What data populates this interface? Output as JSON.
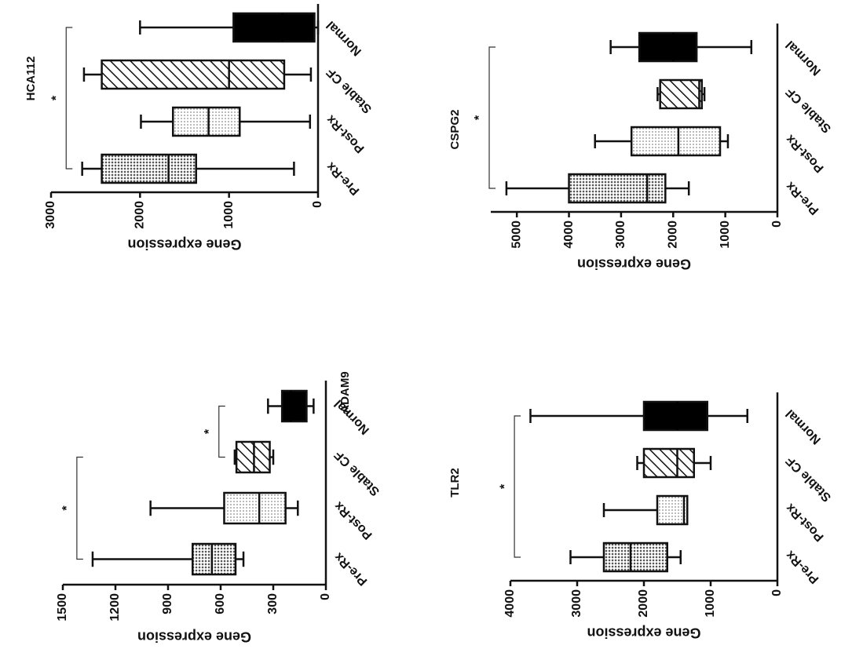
{
  "chart_data": [
    {
      "type": "box",
      "title": "ADAM9",
      "y_label": "Gene expression",
      "categories": [
        "Pre-Rx",
        "Post-Rx",
        "Stable CF",
        "Normal"
      ],
      "boxes": [
        {
          "min": 470,
          "q1": 515,
          "median": 650,
          "q3": 760,
          "max": 1330
        },
        {
          "min": 160,
          "q1": 230,
          "median": 380,
          "q3": 580,
          "max": 1000
        },
        {
          "min": 300,
          "q1": 320,
          "median": 410,
          "q3": 510,
          "max": 520
        },
        {
          "min": 70,
          "q1": 110,
          "median": 200,
          "q3": 250,
          "max": 330
        }
      ],
      "colors": [
        "#9a9a9a",
        "#d4d4d4",
        "#ffffff",
        "#000000"
      ],
      "patterns": [
        "dots",
        "dots",
        "hatch",
        "solid"
      ],
      "ylim": [
        0,
        1500
      ],
      "yticks": [
        0,
        300,
        600,
        900,
        1200,
        1500
      ],
      "grid": false,
      "annotations": [
        {
          "groups": [
            "Pre-Rx",
            "Stable CF"
          ],
          "label": "*"
        },
        {
          "groups": [
            "Stable CF",
            "Normal"
          ],
          "label": "*"
        }
      ]
    },
    {
      "type": "box",
      "title": "HCA112",
      "y_label": "Gene expression",
      "categories": [
        "Pre-Rx",
        "Post-Rx",
        "Stable CF",
        "Normal"
      ],
      "boxes": [
        {
          "min": 270,
          "q1": 1370,
          "median": 1680,
          "q3": 2430,
          "max": 2650
        },
        {
          "min": 90,
          "q1": 880,
          "median": 1230,
          "q3": 1630,
          "max": 1990
        },
        {
          "min": 80,
          "q1": 380,
          "median": 1000,
          "q3": 2430,
          "max": 2630
        },
        {
          "min": 0,
          "q1": 40,
          "median": 400,
          "q3": 950,
          "max": 2000
        }
      ],
      "colors": [
        "#9a9a9a",
        "#d4d4d4",
        "#ffffff",
        "#000000"
      ],
      "patterns": [
        "dots",
        "dots",
        "hatch",
        "solid"
      ],
      "ylim": [
        0,
        3000
      ],
      "yticks": [
        0,
        1000,
        2000,
        3000
      ],
      "grid": false,
      "annotations": [
        {
          "groups": [
            "Pre-Rx",
            "Normal"
          ],
          "label": "*"
        }
      ]
    },
    {
      "type": "box",
      "title": "TLR2",
      "y_label": "Gene expression",
      "categories": [
        "Pre-Rx",
        "Post-Rx",
        "Stable CF",
        "Normal"
      ],
      "boxes": [
        {
          "min": 1450,
          "q1": 1650,
          "median": 2200,
          "q3": 2600,
          "max": 3100
        },
        {
          "min": 1350,
          "q1": 1350,
          "median": 1400,
          "q3": 1800,
          "max": 2600
        },
        {
          "min": 1000,
          "q1": 1250,
          "median": 1500,
          "q3": 2000,
          "max": 2100
        },
        {
          "min": 450,
          "q1": 1050,
          "median": 1500,
          "q3": 2000,
          "max": 3700
        }
      ],
      "colors": [
        "#9a9a9a",
        "#d4d4d4",
        "#ffffff",
        "#000000"
      ],
      "patterns": [
        "dots",
        "dots",
        "hatch",
        "solid"
      ],
      "ylim": [
        0,
        4000
      ],
      "yticks": [
        0,
        1000,
        2000,
        3000,
        4000
      ],
      "grid": false,
      "annotations": [
        {
          "groups": [
            "Pre-Rx",
            "Normal"
          ],
          "label": "*"
        }
      ]
    },
    {
      "type": "box",
      "title": "CSPG2",
      "y_label": "Gene expression",
      "categories": [
        "Pre-Rx",
        "Post-Rx",
        "Stable CF",
        "Normal"
      ],
      "boxes": [
        {
          "min": 1700,
          "q1": 2150,
          "median": 2500,
          "q3": 4000,
          "max": 5200
        },
        {
          "min": 950,
          "q1": 1100,
          "median": 1900,
          "q3": 2800,
          "max": 3500
        },
        {
          "min": 1400,
          "q1": 1450,
          "median": 1500,
          "q3": 2250,
          "max": 2300
        },
        {
          "min": 500,
          "q1": 1550,
          "median": 2000,
          "q3": 2650,
          "max": 3200
        }
      ],
      "colors": [
        "#9a9a9a",
        "#d4d4d4",
        "#ffffff",
        "#000000"
      ],
      "patterns": [
        "dots",
        "dots",
        "hatch",
        "solid"
      ],
      "ylim": [
        0,
        5500
      ],
      "yticks": [
        0,
        1000,
        2000,
        3000,
        4000,
        5000
      ],
      "grid": false,
      "annotations": [
        {
          "groups": [
            "Pre-Rx",
            "Normal"
          ],
          "label": "*"
        }
      ]
    }
  ]
}
